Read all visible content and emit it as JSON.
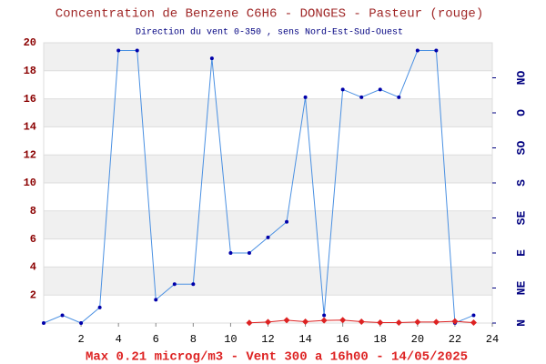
{
  "chart_data": {
    "type": "line",
    "title": "Concentration de Benzene C6H6  -   DONGES - Pasteur (rouge)",
    "subtitle": "Direction du vent 0-350 , sens Nord-Est-Sud-Ouest",
    "footer": "Max 0.21 microg/m3 - Vent 300  a 16h00 - 14/05/2025",
    "x": [
      0,
      1,
      2,
      3,
      4,
      5,
      6,
      7,
      8,
      9,
      10,
      11,
      12,
      13,
      14,
      15,
      16,
      17,
      18,
      19,
      20,
      21,
      22,
      23
    ],
    "xlim": [
      0,
      24
    ],
    "xticks": [
      2,
      4,
      6,
      8,
      10,
      12,
      14,
      16,
      18,
      20,
      22,
      24
    ],
    "ylim": [
      0,
      20
    ],
    "yticks": [
      2,
      4,
      6,
      8,
      10,
      12,
      14,
      16,
      18,
      20
    ],
    "y2lim": [
      0,
      360
    ],
    "y2ticks": [
      {
        "value": 0,
        "label": "N"
      },
      {
        "value": 45,
        "label": "NE"
      },
      {
        "value": 90,
        "label": "E"
      },
      {
        "value": 135,
        "label": "SE"
      },
      {
        "value": 180,
        "label": "S"
      },
      {
        "value": 225,
        "label": "SO"
      },
      {
        "value": 270,
        "label": "O"
      },
      {
        "value": 315,
        "label": "NO"
      }
    ],
    "grid": true,
    "series": [
      {
        "color": "#4a90e2",
        "axis": "y2",
        "marker": "circle",
        "values": [
          0,
          10,
          0,
          20,
          350,
          350,
          30,
          50,
          50,
          340,
          90,
          90,
          110,
          130,
          290,
          10,
          300,
          290,
          300,
          290,
          350,
          350,
          0,
          10
        ]
      },
      {
        "color": "#dd2222",
        "marker": "diamond",
        "values": [
          null,
          null,
          null,
          null,
          null,
          null,
          null,
          null,
          null,
          null,
          null,
          0.02,
          0.07,
          0.2,
          0.1,
          0.19,
          0.21,
          0.1,
          0.03,
          0.03,
          0.07,
          0.07,
          0.12,
          0.03
        ]
      }
    ]
  }
}
